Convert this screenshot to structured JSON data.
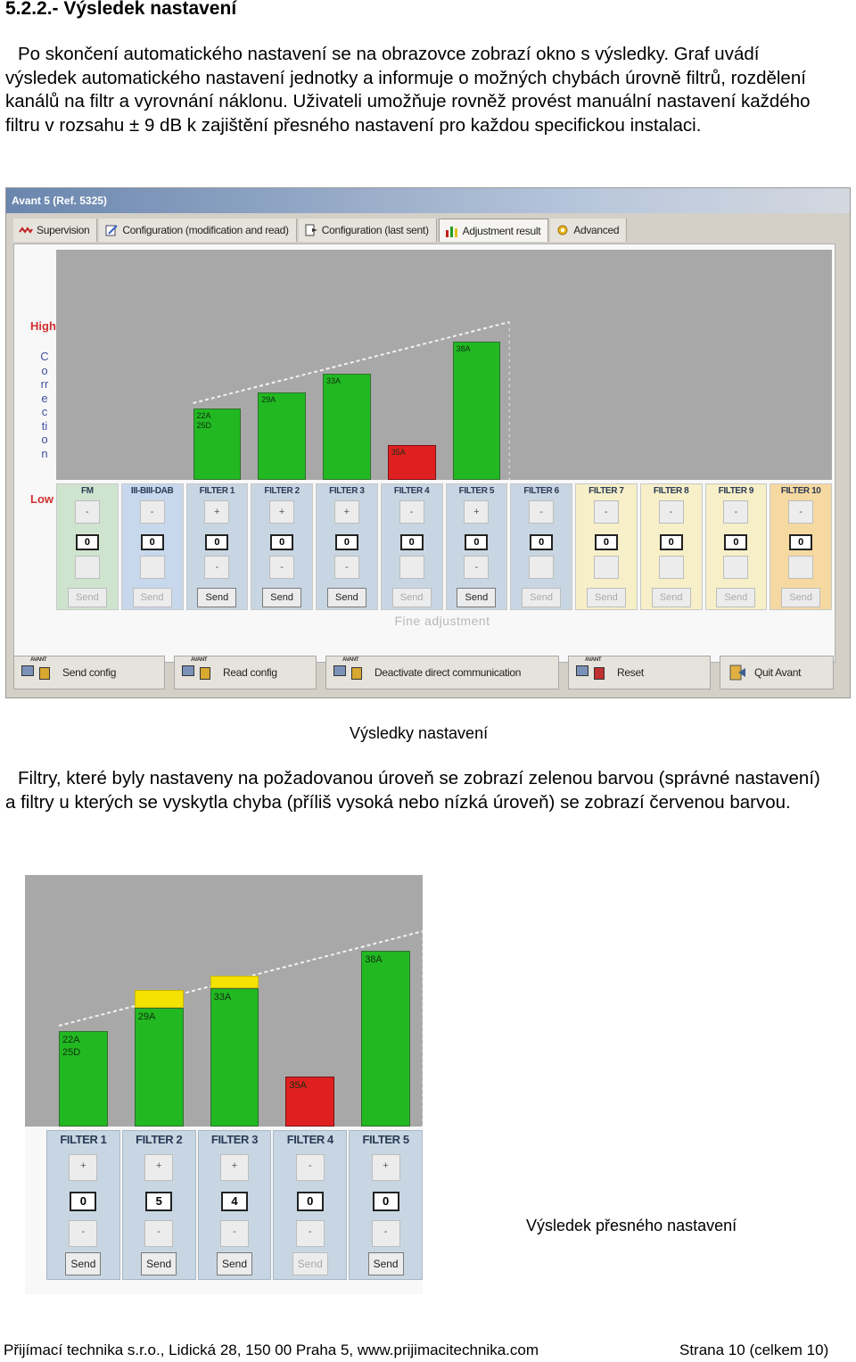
{
  "heading": "5.2.2.- Výsledek nastavení",
  "para1": "Po skončení automatického nastavení se na obrazovce zobrazí okno s výsledky. Graf uvádí výsledek automatického nastavení jednotky a informuje o možných chybách úrovně filtrů, rozdělení kanálů na filtr a vyrovnání náklonu. Uživateli umožňuje rovněž provést manuální nastavení každého filtru v rozsahu ± 9 dB k zajištění přesného nastavení pro každou specifickou instalaci.",
  "para2": "Filtry, které byly nastaveny na požadovanou úroveň se zobrazí zelenou barvou (správné nastavení) a filtry u kterých se vyskytla chyba (příliš vysoká nebo nízká úroveň) se zobrazí červenou barvou.",
  "caption1": "Výsledky nastavení",
  "caption2": "Výsledek přesného nastavení",
  "app": {
    "title": "Avant 5 (Ref. 5325)",
    "tabs": [
      "Supervision",
      "Configuration (modification and read)",
      "Configuration (last sent)",
      "Adjustment result",
      "Advanced"
    ],
    "side_high": "High",
    "side_corr": "Correction",
    "side_low": "Low",
    "fine_adjustment": "Fine adjustment",
    "bottom_buttons": [
      "Send config",
      "Read config",
      "Deactivate direct communication",
      "Reset",
      "Quit Avant"
    ],
    "avant_small": "AVANT",
    "send_label": "Send",
    "plus_label": "+",
    "minus_label": "-",
    "colors": {
      "ok": "#22b822",
      "error": "#e02020",
      "yellow": "#f4e200"
    },
    "channels": [
      {
        "name": "FM",
        "value": "0",
        "bg": "#cfe4cf",
        "send_on": false
      },
      {
        "name": "III-BIII-DAB",
        "value": "0",
        "bg": "#c8d8ec",
        "send_on": false
      },
      {
        "name": "FILTER 1",
        "value": "0",
        "bg": "#c7d6e2",
        "send_on": true
      },
      {
        "name": "FILTER 2",
        "value": "0",
        "bg": "#c7d6e2",
        "send_on": true
      },
      {
        "name": "FILTER 3",
        "value": "0",
        "bg": "#c7d6e2",
        "send_on": true
      },
      {
        "name": "FILTER 4",
        "value": "0",
        "bg": "#c7d6e2",
        "send_on": false
      },
      {
        "name": "FILTER 5",
        "value": "0",
        "bg": "#c7d6e2",
        "send_on": true
      },
      {
        "name": "FILTER 6",
        "value": "0",
        "bg": "#c7d6e2",
        "send_on": false
      },
      {
        "name": "FILTER 7",
        "value": "0",
        "bg": "#f6efc8",
        "send_on": false
      },
      {
        "name": "FILTER 8",
        "value": "0",
        "bg": "#f6efc8",
        "send_on": false
      },
      {
        "name": "FILTER 9",
        "value": "0",
        "bg": "#f6efc8",
        "send_on": false
      },
      {
        "name": "FILTER 10",
        "value": "0",
        "bg": "#f6d9a0",
        "send_on": false
      }
    ],
    "bars": [
      {
        "label": "22A\n25D",
        "level": 0.31,
        "status": "ok",
        "col": 2
      },
      {
        "label": "29A",
        "level": 0.38,
        "status": "ok",
        "col": 3
      },
      {
        "label": "33A",
        "level": 0.46,
        "status": "ok",
        "col": 4
      },
      {
        "label": "35A",
        "level": 0.15,
        "status": "error",
        "col": 5
      },
      {
        "label": "38A",
        "level": 0.6,
        "status": "ok",
        "col": 6
      }
    ]
  },
  "zoom": {
    "channels": [
      {
        "name": "FILTER 1",
        "value": "0",
        "send_on": true
      },
      {
        "name": "FILTER 2",
        "value": "5",
        "send_on": true
      },
      {
        "name": "FILTER 3",
        "value": "4",
        "send_on": true
      },
      {
        "name": "FILTER 4",
        "value": "0",
        "send_on": false
      },
      {
        "name": "FILTER 5",
        "value": "0",
        "send_on": true
      }
    ],
    "bars": [
      {
        "label": "22A\n25D",
        "level": 0.38,
        "cap": 0,
        "status": "ok"
      },
      {
        "label": "29A",
        "level": 0.47,
        "cap": 0.07,
        "status": "ok"
      },
      {
        "label": "33A",
        "level": 0.55,
        "cap": 0.05,
        "status": "ok"
      },
      {
        "label": "35A",
        "level": 0.2,
        "cap": 0,
        "status": "error"
      },
      {
        "label": "38A",
        "level": 0.7,
        "cap": 0,
        "status": "ok"
      }
    ]
  },
  "footer": {
    "left": "Přijímací technika s.r.o., Lidická 28, 150 00 Praha 5, www.prijimacitechnika.com",
    "right": "Strana 10 (celkem 10)"
  }
}
